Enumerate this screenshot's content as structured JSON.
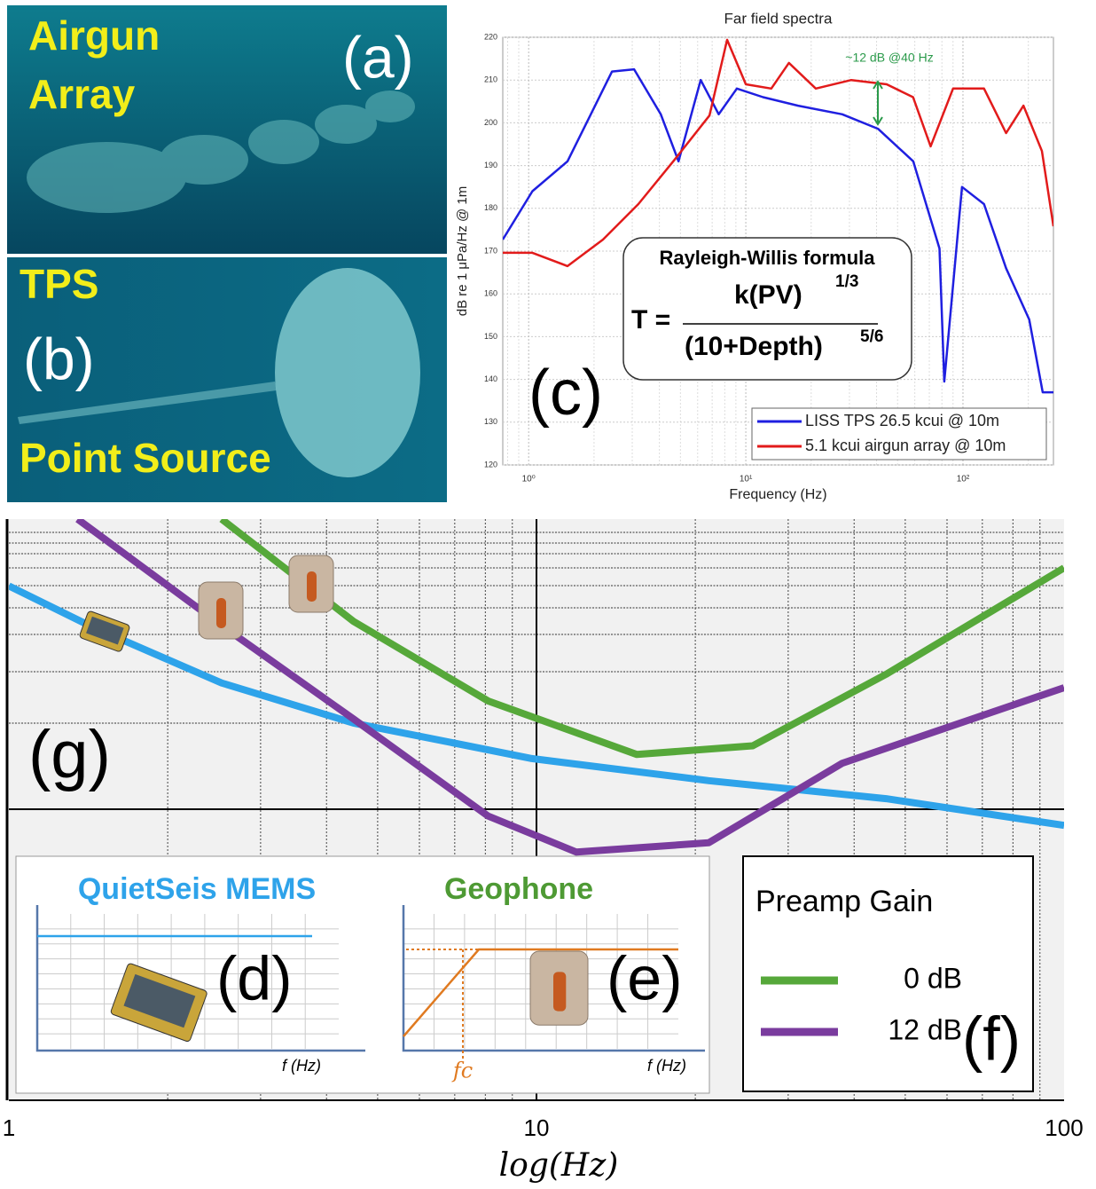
{
  "photos": {
    "a": {
      "lines": [
        "Airgun",
        "Array"
      ],
      "panel": "(a)"
    },
    "b": {
      "lines": [
        "TPS",
        "Point Source"
      ],
      "panel": "(b)"
    }
  },
  "chart_data": [
    {
      "type": "line",
      "title": "Far field spectra",
      "panel": "(c)",
      "y_label": "dB re 1 μPa/Hz @ 1m",
      "x_label": "Frequency (Hz)",
      "log_x": true,
      "xlim": [
        0.76,
        261
      ],
      "ylim": [
        120,
        220
      ],
      "xticks": [
        {
          "value": 1,
          "label": "10⁰"
        },
        {
          "value": 10,
          "label": "10¹"
        },
        {
          "value": 100,
          "label": "10²"
        }
      ],
      "yticks": [
        120,
        130,
        140,
        150,
        160,
        170,
        180,
        190,
        200,
        210,
        220
      ],
      "grid": true,
      "legend": "lower-right",
      "annotation": "~12 dB @40 Hz",
      "formula": {
        "title": "Rayleigh-Willis formula",
        "lhs": "T =",
        "numerator": "k(PV)",
        "num_exp": "1/3",
        "denominator": "(10+Depth)",
        "den_exp": "5/6"
      },
      "series": [
        {
          "name": "LISS TPS 26.5 kcui @ 10m",
          "color": "#1f1fe0",
          "x": [
            0.76,
            1.04,
            1.51,
            2.42,
            3.06,
            4.06,
            4.9,
            6.2,
            7.5,
            9.1,
            12,
            17.4,
            27.8,
            40.6,
            59,
            78,
            82,
            99,
            125,
            158,
            202,
            233,
            261
          ],
          "values": [
            172.7,
            184,
            191,
            212,
            212.5,
            202,
            191,
            210,
            202,
            208,
            206,
            204,
            202,
            198.6,
            191,
            170.6,
            139.5,
            185,
            181,
            166,
            154,
            137,
            137
          ]
        },
        {
          "name": "5.1 kcui airgun array @ 10m",
          "color": "#e21b1b",
          "x": [
            0.76,
            1.04,
            1.51,
            2.2,
            3.2,
            4.7,
            6.8,
            8.2,
            10,
            13.1,
            15.8,
            21,
            30.6,
            44.5,
            58.9,
            71,
            90,
            125,
            158,
            190,
            231,
            261
          ],
          "values": [
            169.6,
            169.6,
            166.5,
            172.7,
            181,
            191.4,
            201.7,
            219.4,
            209,
            208,
            214,
            208,
            210,
            209,
            206,
            194.5,
            208,
            208,
            197.6,
            204,
            193.4,
            175.8
          ]
        }
      ]
    },
    {
      "type": "line",
      "panel": "(g)",
      "x_label": "log(Hz)",
      "log_x": true,
      "xlim": [
        1,
        100
      ],
      "ylim": [
        0,
        100
      ],
      "xticks": [
        1,
        10,
        100
      ],
      "grid": true,
      "legend_title": "Preamp Gain",
      "legend_panel": "(f)",
      "insets": {
        "mems": {
          "title": "QuietSeis MEMS",
          "axis": "f (Hz)",
          "panel": "(d)"
        },
        "geophone": {
          "title": "Geophone",
          "axis": "f (Hz)",
          "corner": "fc",
          "panel": "(e)"
        }
      },
      "series": [
        {
          "color": "#2ea3ea",
          "x": [
            1,
            1.42,
            2.53,
            4.5,
            9.8,
            21.2,
            46,
            100
          ],
          "values": [
            88.5,
            81.7,
            71.8,
            64.9,
            58.8,
            55,
            51.9,
            47.3
          ]
        },
        {
          "name": "0 dB",
          "color": "#56a83a",
          "x": [
            2.53,
            4.5,
            8.1,
            15.5,
            25.7,
            46,
            100
          ],
          "values": [
            100,
            82.4,
            68.7,
            59.5,
            61,
            73.3,
            91.6
          ]
        },
        {
          "name": "12 dB",
          "color": "#7a3c9e",
          "x": [
            1.35,
            2.53,
            4.5,
            8.1,
            11.9,
            21.2,
            38,
            100
          ],
          "values": [
            100,
            81.7,
            65.6,
            48.9,
            42.7,
            44.3,
            58,
            71
          ]
        }
      ]
    }
  ]
}
